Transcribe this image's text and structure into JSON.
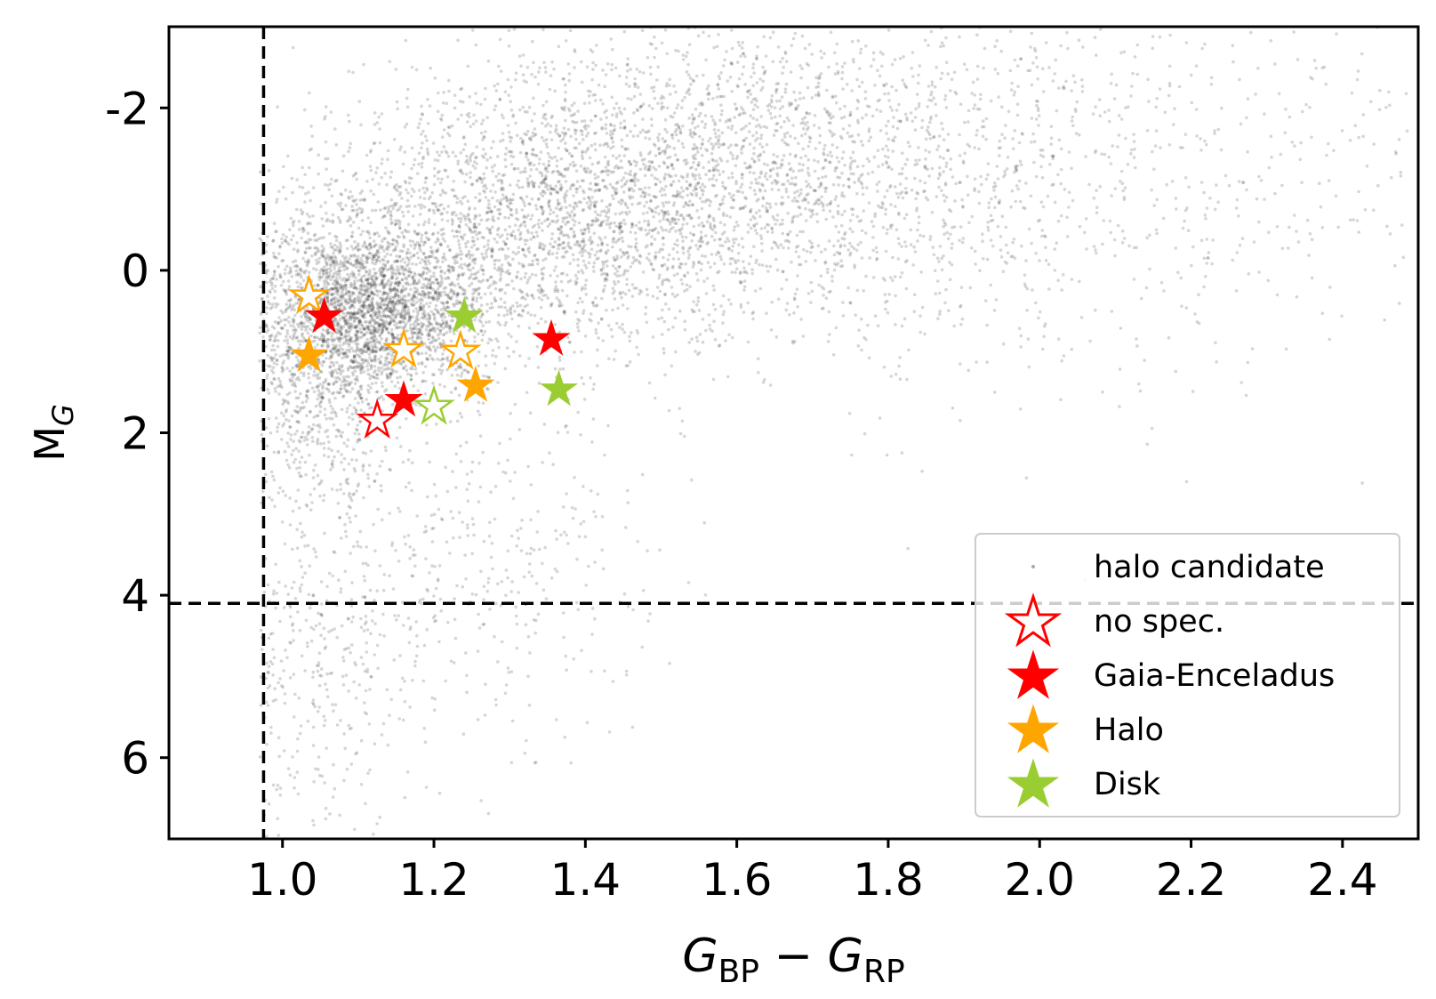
{
  "chart_data": {
    "type": "scatter",
    "xlabel": {
      "base1": "G",
      "sub1": "BP",
      "op": " − ",
      "base2": "G",
      "sub2": "RP"
    },
    "ylabel": {
      "base": "M",
      "sub": "G"
    },
    "xlim": [
      0.85,
      2.5
    ],
    "ylim": [
      7.0,
      -3.0
    ],
    "y_inverted": true,
    "xticks": [
      1.0,
      1.2,
      1.4,
      1.6,
      1.8,
      2.0,
      2.2,
      2.4
    ],
    "xtick_labels": [
      "1.0",
      "1.2",
      "1.4",
      "1.6",
      "1.8",
      "2.0",
      "2.2",
      "2.4"
    ],
    "yticks": [
      -2,
      0,
      2,
      4,
      6
    ],
    "ytick_labels": [
      "-2",
      "0",
      "2",
      "4",
      "6"
    ],
    "grid": false,
    "reference_lines": [
      {
        "orientation": "vertical",
        "x": 0.975,
        "style": "dashed",
        "color": "#000000"
      },
      {
        "orientation": "horizontal",
        "y": 4.1,
        "style": "dashed",
        "color": "#000000"
      }
    ],
    "legend": {
      "position": "lower-right",
      "entries": [
        {
          "label": "halo candidate",
          "marker": "dot",
          "color": "#aaaaaa",
          "filled": true
        },
        {
          "label": "no spec.",
          "marker": "star",
          "color": "#ff0000",
          "filled": false
        },
        {
          "label": "Gaia-Enceladus",
          "marker": "star",
          "color": "#ff0000",
          "filled": true
        },
        {
          "label": "Halo",
          "marker": "star",
          "color": "#ffa500",
          "filled": true
        },
        {
          "label": "Disk",
          "marker": "star",
          "color": "#9acd32",
          "filled": true
        }
      ]
    },
    "background_distribution": {
      "name": "halo candidate",
      "color": "#000000",
      "approx_count": 9000,
      "description_points": [
        {
          "x": 1.13,
          "y": 0.45,
          "weight": 0.22,
          "sx": 0.07,
          "sy": 0.5
        },
        {
          "x": 1.05,
          "y": 0.9,
          "weight": 0.14,
          "sx": 0.06,
          "sy": 0.9
        },
        {
          "x": 1.35,
          "y": -0.6,
          "weight": 0.22,
          "sx": 0.15,
          "sy": 0.8
        },
        {
          "x": 1.6,
          "y": -1.3,
          "weight": 0.2,
          "sx": 0.2,
          "sy": 0.9
        },
        {
          "x": 1.95,
          "y": -1.2,
          "weight": 0.12,
          "sx": 0.3,
          "sy": 1.4
        },
        {
          "x": 1.02,
          "y": 4.8,
          "weight": 0.05,
          "sx": 0.08,
          "sy": 1.2
        },
        {
          "x": 1.25,
          "y": 3.4,
          "weight": 0.05,
          "sx": 0.12,
          "sy": 1.2
        }
      ]
    },
    "series": [
      {
        "name": "no spec.",
        "color": "#ff0000",
        "filled": false,
        "points": [
          {
            "x": 1.125,
            "y": 1.85
          }
        ]
      },
      {
        "name": "no spec.",
        "color": "#ffa500",
        "filled": false,
        "points": [
          {
            "x": 1.035,
            "y": 0.32
          },
          {
            "x": 1.16,
            "y": 0.98
          },
          {
            "x": 1.235,
            "y": 1.0
          }
        ]
      },
      {
        "name": "no spec.",
        "color": "#9acd32",
        "filled": false,
        "points": [
          {
            "x": 1.2,
            "y": 1.68
          }
        ]
      },
      {
        "name": "Gaia-Enceladus",
        "color": "#ff0000",
        "filled": true,
        "points": [
          {
            "x": 1.055,
            "y": 0.57
          },
          {
            "x": 1.16,
            "y": 1.6
          },
          {
            "x": 1.355,
            "y": 0.85
          }
        ]
      },
      {
        "name": "Halo",
        "color": "#ffa500",
        "filled": true,
        "points": [
          {
            "x": 1.035,
            "y": 1.05
          },
          {
            "x": 1.255,
            "y": 1.42
          }
        ]
      },
      {
        "name": "Disk",
        "color": "#9acd32",
        "filled": true,
        "points": [
          {
            "x": 1.24,
            "y": 0.57
          },
          {
            "x": 1.365,
            "y": 1.47
          }
        ]
      }
    ]
  }
}
